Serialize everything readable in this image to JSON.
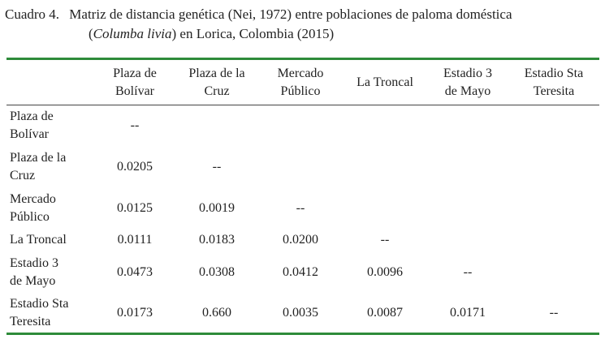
{
  "caption": {
    "label": "Cuadro 4.",
    "text_before": "Matriz de distancia genética (Nei, 1972) entre poblaciones de paloma doméstica",
    "species": "Columba livia",
    "text_after": "en Lorica, Colombia (2015)"
  },
  "table": {
    "columns": [
      [
        "Plaza de",
        "Bolívar"
      ],
      [
        "Plaza de la",
        "Cruz"
      ],
      [
        "Mercado",
        "Público"
      ],
      [
        "La Troncal"
      ],
      [
        "Estadio 3",
        "de Mayo"
      ],
      [
        "Estadio Sta",
        "Teresita"
      ]
    ],
    "rows": [
      {
        "label": [
          "Plaza de",
          "Bolívar"
        ],
        "cells": [
          "--"
        ]
      },
      {
        "label": [
          "Plaza de la",
          "Cruz"
        ],
        "cells": [
          "0.0205",
          "--"
        ]
      },
      {
        "label": [
          "Mercado",
          "Público"
        ],
        "cells": [
          "0.0125",
          "0.0019",
          "--"
        ]
      },
      {
        "label": [
          "La Troncal"
        ],
        "cells": [
          "0.0111",
          "0.0183",
          "0.0200",
          "--"
        ]
      },
      {
        "label": [
          "Estadio 3",
          "de Mayo"
        ],
        "cells": [
          "0.0473",
          "0.0308",
          "0.0412",
          "0.0096",
          "--"
        ]
      },
      {
        "label": [
          "Estadio Sta",
          "Teresita"
        ],
        "cells": [
          "0.0173",
          "0.660",
          "0.0035",
          "0.0087",
          "0.0171",
          "--"
        ]
      }
    ]
  }
}
